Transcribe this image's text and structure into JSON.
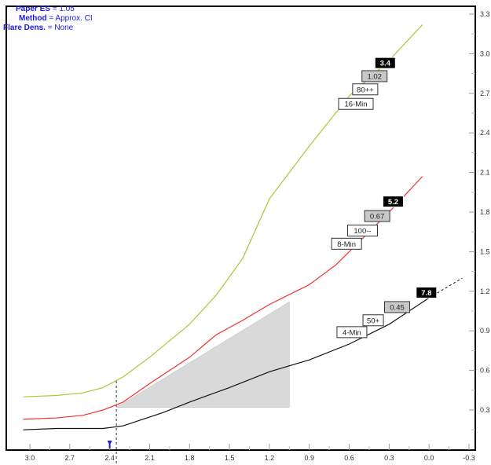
{
  "info": [
    {
      "label": "Paper ES",
      "value": "1.05"
    },
    {
      "label": "Method",
      "value": "Approx. CI"
    },
    {
      "label": "Flare Dens.",
      "value": "None"
    }
  ],
  "chart_data": {
    "type": "line",
    "xlim": [
      3.15,
      -0.35
    ],
    "ylim": [
      0.0,
      3.4
    ],
    "x_ticks": [
      "3.0",
      "2.7",
      "2.4",
      "2.1",
      "1.8",
      "1.5",
      "1.2",
      "0.9",
      "0.6",
      "0.3",
      "0.0",
      "-0.3"
    ],
    "x_tick_values": [
      3.0,
      2.7,
      2.4,
      2.1,
      1.8,
      1.5,
      1.2,
      0.9,
      0.6,
      0.3,
      0.0,
      -0.3
    ],
    "y_ticks": [
      "0.3",
      "0.6",
      "0.9",
      "1.2",
      "1.5",
      "1.8",
      "2.1",
      "2.4",
      "2.7",
      "3.0",
      "3.3"
    ],
    "y_tick_values": [
      0.3,
      0.6,
      0.9,
      1.2,
      1.5,
      1.8,
      2.1,
      2.4,
      2.7,
      3.0,
      3.3
    ],
    "marker_x": 2.4,
    "cursor_x": 2.35,
    "colors": {
      "green": "#a8c83a",
      "red": "#f03030",
      "black": "#111111",
      "triangle": "#d9d9d9",
      "marker": "#1a1ae6"
    },
    "series": [
      {
        "name": "16-Min",
        "color": "#a8c83a",
        "points": [
          [
            3.05,
            0.4
          ],
          [
            2.8,
            0.41
          ],
          [
            2.6,
            0.43
          ],
          [
            2.45,
            0.47
          ],
          [
            2.3,
            0.55
          ],
          [
            2.1,
            0.7
          ],
          [
            1.8,
            0.95
          ],
          [
            1.6,
            1.17
          ],
          [
            1.4,
            1.45
          ],
          [
            1.2,
            1.9
          ],
          [
            0.9,
            2.3
          ],
          [
            0.6,
            2.68
          ],
          [
            0.3,
            2.95
          ],
          [
            0.05,
            3.22
          ]
        ],
        "labels": [
          {
            "text": "16-Min",
            "x": 0.55,
            "y": 2.62,
            "style": "white"
          },
          {
            "text": "80++",
            "x": 0.48,
            "y": 2.73,
            "style": "white"
          },
          {
            "text": "1.02",
            "x": 0.41,
            "y": 2.83,
            "style": "gray"
          },
          {
            "text": "3.4",
            "x": 0.33,
            "y": 2.93,
            "style": "black"
          }
        ]
      },
      {
        "name": "8-Min",
        "color": "#f03030",
        "points": [
          [
            3.05,
            0.23
          ],
          [
            2.8,
            0.24
          ],
          [
            2.6,
            0.26
          ],
          [
            2.45,
            0.3
          ],
          [
            2.3,
            0.36
          ],
          [
            2.1,
            0.5
          ],
          [
            1.8,
            0.7
          ],
          [
            1.6,
            0.87
          ],
          [
            1.4,
            0.98
          ],
          [
            1.2,
            1.1
          ],
          [
            0.9,
            1.25
          ],
          [
            0.7,
            1.4
          ],
          [
            0.5,
            1.6
          ],
          [
            0.3,
            1.8
          ],
          [
            0.05,
            2.07
          ]
        ],
        "labels": [
          {
            "text": "8-Min",
            "x": 0.62,
            "y": 1.56,
            "style": "white"
          },
          {
            "text": "100--",
            "x": 0.5,
            "y": 1.66,
            "style": "white"
          },
          {
            "text": "0.67",
            "x": 0.39,
            "y": 1.77,
            "style": "gray"
          },
          {
            "text": "5.2",
            "x": 0.27,
            "y": 1.88,
            "style": "black"
          }
        ]
      },
      {
        "name": "4-Min",
        "color": "#111111",
        "points": [
          [
            3.05,
            0.15
          ],
          [
            2.8,
            0.16
          ],
          [
            2.45,
            0.16
          ],
          [
            2.3,
            0.18
          ],
          [
            2.0,
            0.28
          ],
          [
            1.8,
            0.36
          ],
          [
            1.5,
            0.47
          ],
          [
            1.2,
            0.59
          ],
          [
            0.9,
            0.68
          ],
          [
            0.6,
            0.8
          ],
          [
            0.3,
            0.95
          ],
          [
            0.0,
            1.15
          ]
        ],
        "extension": [
          [
            0.0,
            1.15
          ],
          [
            -0.25,
            1.3
          ]
        ],
        "labels": [
          {
            "text": "4-Min",
            "x": 0.58,
            "y": 0.89,
            "style": "white"
          },
          {
            "text": "50+",
            "x": 0.42,
            "y": 0.98,
            "style": "white"
          },
          {
            "text": "0.45",
            "x": 0.24,
            "y": 1.08,
            "style": "gray"
          },
          {
            "text": "7.8",
            "x": 0.02,
            "y": 1.19,
            "style": "black"
          }
        ]
      }
    ],
    "triangle": [
      [
        2.35,
        0.32
      ],
      [
        1.05,
        0.32
      ],
      [
        1.05,
        1.12
      ]
    ]
  }
}
